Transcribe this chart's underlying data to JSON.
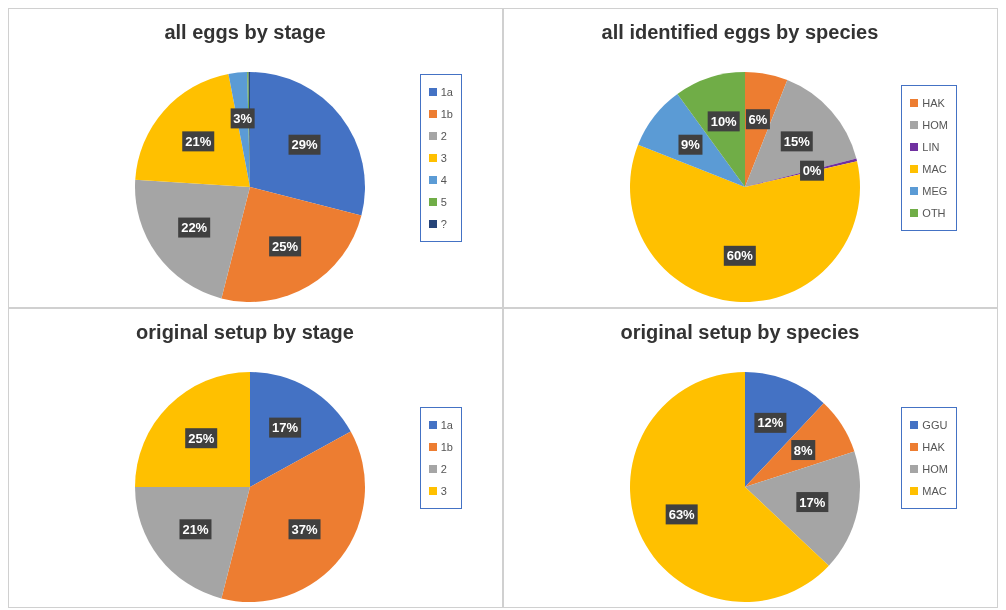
{
  "chart_data": [
    {
      "type": "pie",
      "title": "all eggs by stage",
      "categories": [
        "1a",
        "1b",
        "2",
        "3",
        "4",
        "5",
        "?"
      ],
      "values": [
        29,
        25,
        22,
        21,
        2.6,
        0.2,
        0.2
      ],
      "value_labels": [
        "29%",
        "25%",
        "22%",
        "21%",
        "3%",
        null,
        null
      ],
      "colors": [
        "#4472c4",
        "#ed7d31",
        "#a5a5a5",
        "#ffc000",
        "#5b9bd5",
        "#70ad47",
        "#264478"
      ],
      "legend": "right"
    },
    {
      "type": "pie",
      "title": "all identified eggs by species",
      "categories": [
        "HAK",
        "HOM",
        "LIN",
        "MAC",
        "MEG",
        "OTH"
      ],
      "values": [
        6,
        15,
        0.4,
        59.6,
        9,
        10
      ],
      "value_labels": [
        "6%",
        "15%",
        "0%",
        "60%",
        "9%",
        "10%"
      ],
      "colors": [
        "#ed7d31",
        "#a5a5a5",
        "#7030a0",
        "#ffc000",
        "#5b9bd5",
        "#70ad47"
      ],
      "legend": "right"
    },
    {
      "type": "pie",
      "title": "original setup by stage",
      "categories": [
        "1a",
        "1b",
        "2",
        "3"
      ],
      "values": [
        17,
        37,
        21,
        25
      ],
      "value_labels": [
        "17%",
        "37%",
        "21%",
        "25%"
      ],
      "colors": [
        "#4472c4",
        "#ed7d31",
        "#a5a5a5",
        "#ffc000"
      ],
      "legend": "right"
    },
    {
      "type": "pie",
      "title": "original setup by species",
      "categories": [
        "GGU",
        "HAK",
        "HOM",
        "MAC"
      ],
      "values": [
        12,
        8,
        17,
        63
      ],
      "value_labels": [
        "12%",
        "8%",
        "17%",
        "63%"
      ],
      "colors": [
        "#4472c4",
        "#ed7d31",
        "#a5a5a5",
        "#ffc000"
      ],
      "legend": "right"
    }
  ]
}
